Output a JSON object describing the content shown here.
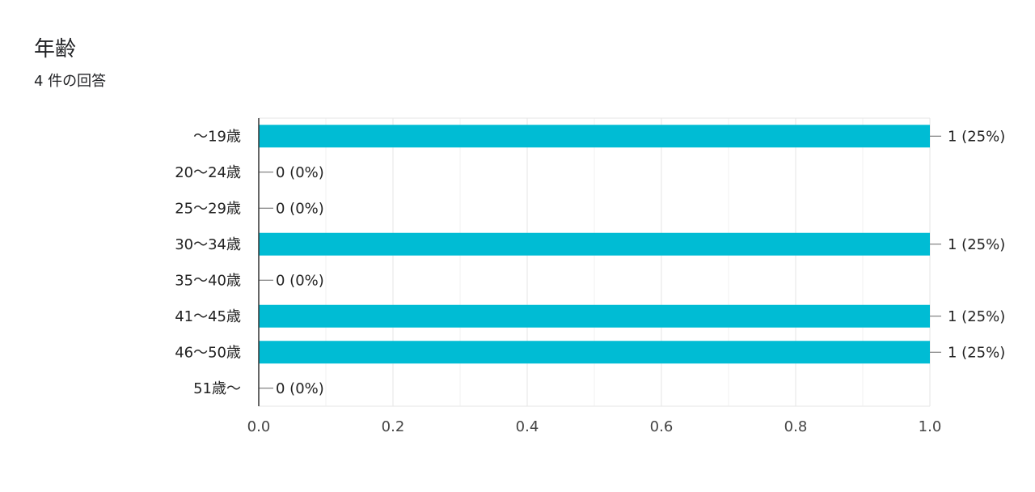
{
  "question": {
    "title": "年齢",
    "response_count": "4 件の回答"
  },
  "chart_data": {
    "type": "bar",
    "orientation": "horizontal",
    "categories": [
      "〜19歳",
      "20〜24歳",
      "25〜29歳",
      "30〜34歳",
      "35〜40歳",
      "41〜45歳",
      "46〜50歳",
      "51歳〜"
    ],
    "values": [
      1,
      0,
      0,
      1,
      0,
      1,
      1,
      0
    ],
    "value_labels": [
      "1 (25%)",
      "0 (0%)",
      "0 (0%)",
      "1 (25%)",
      "0 (0%)",
      "1 (25%)",
      "1 (25%)",
      "0 (0%)"
    ],
    "xlim": [
      0,
      1.0
    ],
    "xticks": [
      "0.0",
      "0.2",
      "0.4",
      "0.6",
      "0.8",
      "1.0"
    ],
    "grid": true,
    "bar_color": "#00BCD4"
  }
}
